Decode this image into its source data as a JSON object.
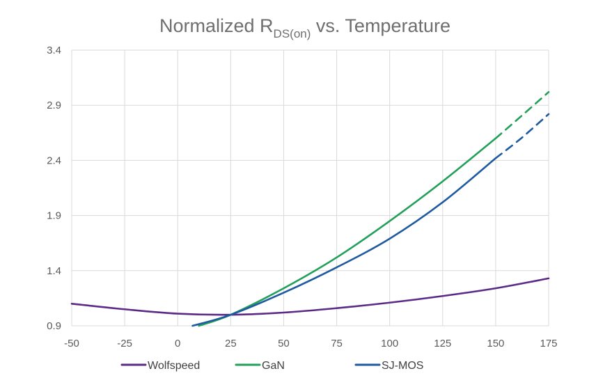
{
  "chart_data": {
    "type": "line",
    "title": {
      "main": "Normalized R",
      "subscript": "DS(on)",
      "suffix": " vs. Temperature"
    },
    "xlabel": "",
    "ylabel": "",
    "x_ticks": [
      "-50",
      "-25",
      "0",
      "25",
      "50",
      "75",
      "100",
      "125",
      "150",
      "175"
    ],
    "y_ticks": [
      "3.4",
      "2.9",
      "2.4",
      "1.9",
      "1.4",
      "0.9"
    ],
    "xlim": [
      -50,
      175
    ],
    "ylim": [
      0.9,
      3.4
    ],
    "grid": true,
    "legend_position": "bottom",
    "series": [
      {
        "name": "Wolfspeed",
        "color": "#5b2a86",
        "style": "solid",
        "x": [
          -50,
          -25,
          0,
          25,
          50,
          75,
          100,
          125,
          150,
          175
        ],
        "y": [
          1.1,
          1.05,
          1.01,
          1.0,
          1.02,
          1.06,
          1.11,
          1.17,
          1.24,
          1.33
        ]
      },
      {
        "name": "GaN",
        "color": "#22a05a",
        "style": "solid",
        "x": [
          10,
          25,
          50,
          75,
          100,
          125,
          150
        ],
        "y": [
          0.9,
          1.0,
          1.24,
          1.52,
          1.85,
          2.21,
          2.6
        ]
      },
      {
        "name": "GaN",
        "color": "#22a05a",
        "style": "dashed",
        "x": [
          150,
          162,
          175
        ],
        "y": [
          2.6,
          2.8,
          3.02
        ]
      },
      {
        "name": "SJ-MOS",
        "color": "#1f5aa0",
        "style": "solid",
        "x": [
          7,
          25,
          50,
          75,
          100,
          125,
          150
        ],
        "y": [
          0.9,
          1.0,
          1.2,
          1.43,
          1.69,
          2.02,
          2.42
        ]
      },
      {
        "name": "SJ-MOS",
        "color": "#1f5aa0",
        "style": "dashed",
        "x": [
          150,
          162,
          175
        ],
        "y": [
          2.42,
          2.6,
          2.82
        ]
      }
    ],
    "legend": [
      {
        "label": "Wolfspeed",
        "color": "#5b2a86"
      },
      {
        "label": "GaN",
        "color": "#22a05a"
      },
      {
        "label": "SJ-MOS",
        "color": "#1f5aa0"
      }
    ]
  }
}
